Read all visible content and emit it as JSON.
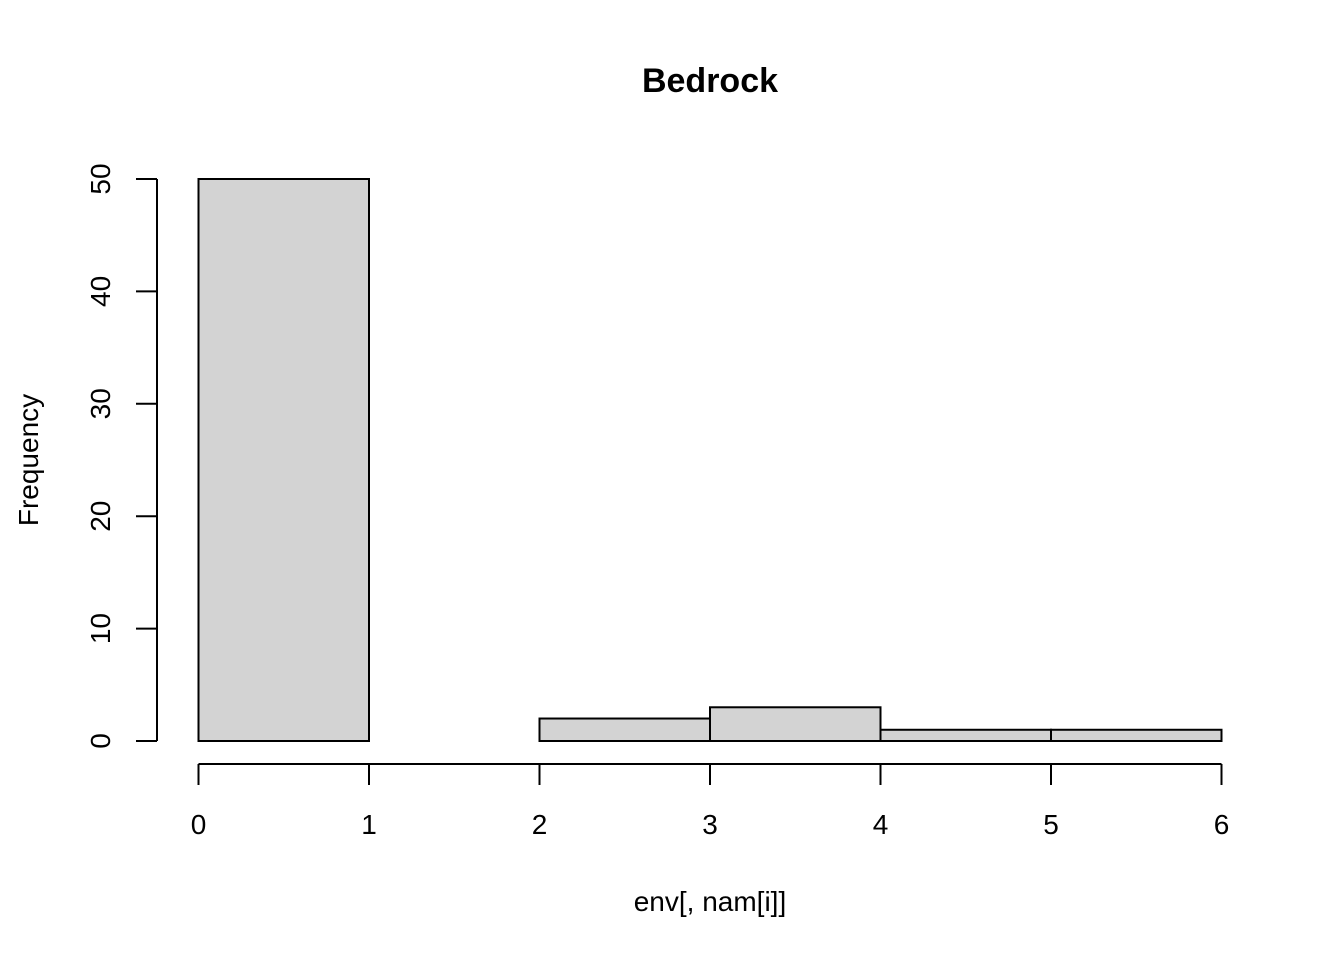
{
  "chart_data": {
    "type": "bar",
    "subtype": "histogram",
    "title": "Bedrock",
    "xlabel": "env[, nam[i]]",
    "ylabel": "Frequency",
    "bins": [
      {
        "from": 0,
        "to": 1,
        "count": 50
      },
      {
        "from": 1,
        "to": 2,
        "count": 0
      },
      {
        "from": 2,
        "to": 3,
        "count": 2
      },
      {
        "from": 3,
        "to": 4,
        "count": 3
      },
      {
        "from": 4,
        "to": 5,
        "count": 1
      },
      {
        "from": 5,
        "to": 6,
        "count": 1
      }
    ],
    "xlim": [
      0,
      6
    ],
    "ylim": [
      0,
      50
    ],
    "x_ticks": [
      0,
      1,
      2,
      3,
      4,
      5,
      6
    ],
    "y_ticks": [
      0,
      10,
      20,
      30,
      40,
      50
    ],
    "x_tick_labels": [
      "0",
      "1",
      "2",
      "3",
      "4",
      "5",
      "6"
    ],
    "y_tick_labels": [
      "0",
      "10",
      "20",
      "30",
      "40",
      "50"
    ],
    "grid": false,
    "colors": {
      "bar_fill": "#d3d3d3",
      "bar_stroke": "#000000",
      "axis": "#000000"
    }
  }
}
